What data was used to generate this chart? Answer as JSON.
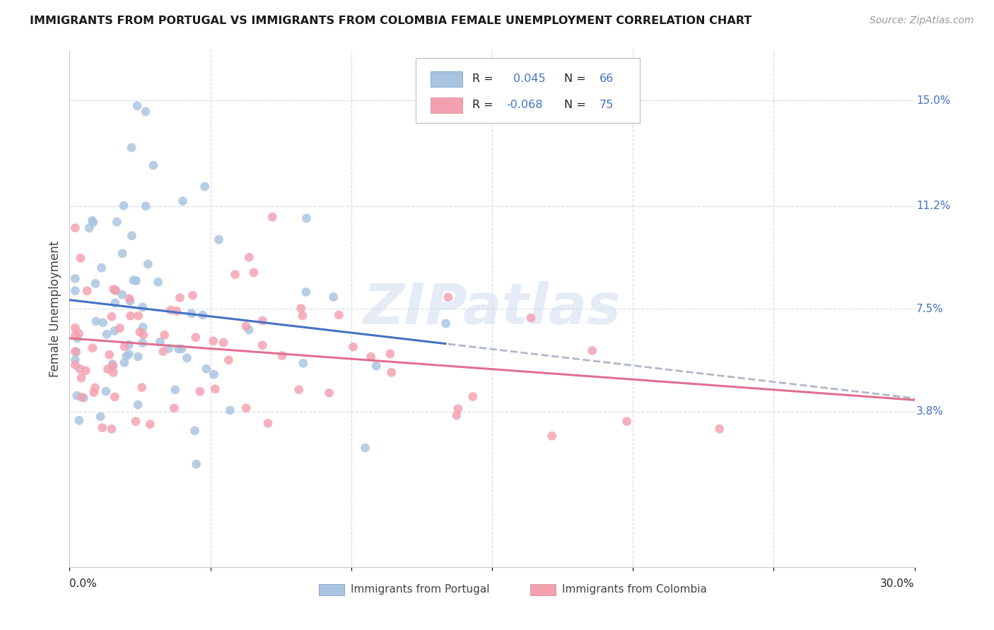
{
  "title": "IMMIGRANTS FROM PORTUGAL VS IMMIGRANTS FROM COLOMBIA FEMALE UNEMPLOYMENT CORRELATION CHART",
  "source": "Source: ZipAtlas.com",
  "ylabel": "Female Unemployment",
  "xlim": [
    0.0,
    0.3
  ],
  "ylim": [
    -0.018,
    0.168
  ],
  "color_portugal": "#a8c4e0",
  "color_colombia": "#f4a0b0",
  "trendline_portugal": "#4472c4",
  "trendline_colombia": "#e07090",
  "trendline_dashed": "#b0b8c8",
  "R_portugal": 0.045,
  "N_portugal": 66,
  "R_colombia": -0.068,
  "N_colombia": 75,
  "legend_color_numbers": "#4472c4",
  "legend_color_text": "#222222",
  "watermark_text": "ZIPatlas",
  "watermark_color": "#d0ddf0",
  "right_tick_color": "#4472c4",
  "grid_color": "#d8dde8",
  "ytick_positions": [
    0.038,
    0.075,
    0.112,
    0.15
  ],
  "ytick_labels": [
    "3.8%",
    "7.5%",
    "11.2%",
    "15.0%"
  ],
  "xtick_positions": [
    0.0,
    0.05,
    0.1,
    0.15,
    0.2,
    0.25,
    0.3
  ],
  "xtick_left_label": "0.0%",
  "xtick_right_label": "30.0%"
}
